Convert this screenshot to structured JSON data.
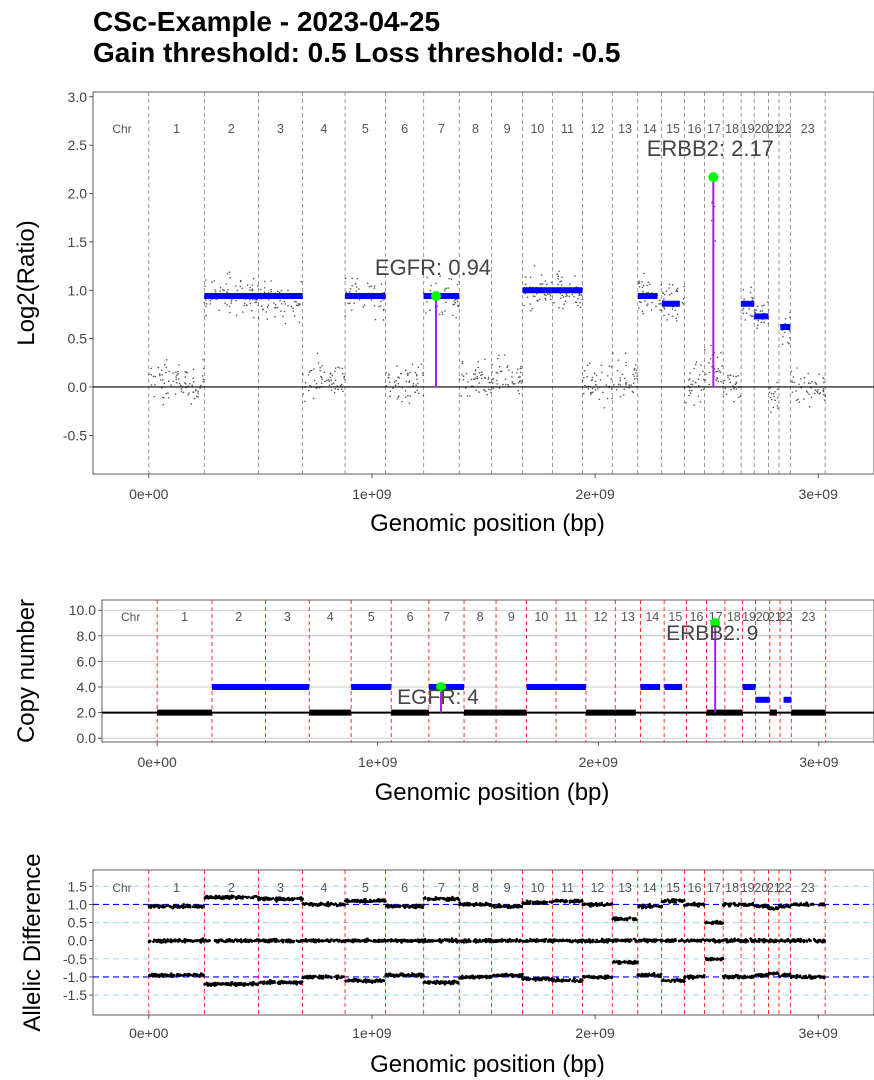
{
  "title": {
    "line1": "CSc-Example - 2023-04-25",
    "line2": "Gain threshold:  0.5  Loss threshold: -0.5"
  },
  "colors": {
    "segment": "#0000ff",
    "baseline": "#000000",
    "gene_stem": "#a020f0",
    "gene_point": "#00ff00",
    "chrom_line_panel1": "#808080",
    "chrom_line_panel23": "#ff0000",
    "threshold_allelic": "#0000ff",
    "threshold_allelic_light": "#add8e6",
    "points": "#555555"
  },
  "chr_label": "Chr",
  "chromosomes": [
    {
      "name": "1",
      "start": 0,
      "end": 248956422
    },
    {
      "name": "2",
      "start": 248956422,
      "end": 491149951
    },
    {
      "name": "3",
      "start": 491149951,
      "end": 689445510
    },
    {
      "name": "4",
      "start": 689445510,
      "end": 879660065
    },
    {
      "name": "5",
      "start": 879660065,
      "end": 1061198324
    },
    {
      "name": "6",
      "start": 1061198324,
      "end": 1232004303
    },
    {
      "name": "7",
      "start": 1232004303,
      "end": 1391350276
    },
    {
      "name": "8",
      "start": 1391350276,
      "end": 1536488912
    },
    {
      "name": "9",
      "start": 1536488912,
      "end": 1674883629
    },
    {
      "name": "10",
      "start": 1674883629,
      "end": 1808681051
    },
    {
      "name": "11",
      "start": 1808681051,
      "end": 1943767673
    },
    {
      "name": "12",
      "start": 1943767673,
      "end": 2077042982
    },
    {
      "name": "13",
      "start": 2077042982,
      "end": 2191407310
    },
    {
      "name": "14",
      "start": 2191407310,
      "end": 2298451028
    },
    {
      "name": "15",
      "start": 2298451028,
      "end": 2400442217
    },
    {
      "name": "16",
      "start": 2400442217,
      "end": 2490780562
    },
    {
      "name": "17",
      "start": 2490780562,
      "end": 2574038003
    },
    {
      "name": "18",
      "start": 2574038003,
      "end": 2654411288
    },
    {
      "name": "19",
      "start": 2654411288,
      "end": 2713028904
    },
    {
      "name": "20",
      "start": 2713028904,
      "end": 2777473071
    },
    {
      "name": "21",
      "start": 2777473071,
      "end": 2824183054
    },
    {
      "name": "22",
      "start": 2824183054,
      "end": 2875001522
    },
    {
      "name": "23",
      "start": 2875001522,
      "end": 3031042417
    }
  ],
  "chart_data": [
    {
      "type": "scatter",
      "xlabel": "Genomic position (bp)",
      "ylabel": "Log2(Ratio)",
      "xlim": [
        -250000000,
        3250000000
      ],
      "ylim": [
        -0.9,
        3.05
      ],
      "x_ticks": [
        0,
        1000000000,
        2000000000,
        3000000000
      ],
      "x_tick_labels": [
        "0e+00",
        "1e+09",
        "2e+09",
        "3e+09"
      ],
      "y_ticks": [
        -0.5,
        0.0,
        0.5,
        1.0,
        1.5,
        2.0,
        2.5,
        3.0
      ],
      "y_tick_labels": [
        "-0.5",
        "0.0",
        "0.5",
        "1.0",
        "1.5",
        "2.0",
        "2.5",
        "3.0"
      ],
      "chrom_level": [
        0.05,
        0.95,
        0.88,
        0.08,
        0.95,
        0.05,
        0.92,
        0.05,
        0.08,
        1.0,
        1.0,
        0.02,
        0.1,
        0.95,
        0.88,
        0.05,
        0.2,
        0.05,
        0.86,
        0.72,
        -0.1,
        0.62,
        0.0
      ],
      "segments": [
        {
          "x0": 248956422,
          "x1": 689445510,
          "y": 0.94
        },
        {
          "x0": 879660065,
          "x1": 1061198324,
          "y": 0.94
        },
        {
          "x0": 1232004303,
          "x1": 1391350276,
          "y": 0.94
        },
        {
          "x0": 1674883629,
          "x1": 1943767673,
          "y": 1.0
        },
        {
          "x0": 2191407310,
          "x1": 2280000000,
          "y": 0.94
        },
        {
          "x0": 2300000000,
          "x1": 2380000000,
          "y": 0.86
        },
        {
          "x0": 2654411288,
          "x1": 2713028904,
          "y": 0.86
        },
        {
          "x0": 2713028904,
          "x1": 2777473071,
          "y": 0.73
        },
        {
          "x0": 2830000000,
          "x1": 2875001522,
          "y": 0.62
        }
      ],
      "genes": [
        {
          "label": "EGFR: 0.94",
          "x": 1287000000,
          "y": 0.94
        },
        {
          "label": "ERBB2: 2.17",
          "x": 2530000000,
          "y": 2.17
        }
      ]
    },
    {
      "type": "line",
      "xlabel": "Genomic position (bp)",
      "ylabel": "Copy number",
      "xlim": [
        -250000000,
        3250000000
      ],
      "ylim": [
        -0.3,
        10.8
      ],
      "x_ticks": [
        0,
        1000000000,
        2000000000,
        3000000000
      ],
      "x_tick_labels": [
        "0e+00",
        "1e+09",
        "2e+09",
        "3e+09"
      ],
      "y_ticks": [
        0,
        2,
        4,
        6,
        8,
        10
      ],
      "y_tick_labels": [
        "0.0",
        "2.0",
        "4.0",
        "6.0",
        "8.0",
        "10.0"
      ],
      "segments": [
        {
          "x0": 0,
          "x1": 248956422,
          "y": 2
        },
        {
          "x0": 248956422,
          "x1": 689445510,
          "y": 4
        },
        {
          "x0": 689445510,
          "x1": 879660065,
          "y": 2
        },
        {
          "x0": 879660065,
          "x1": 1061198324,
          "y": 4
        },
        {
          "x0": 1061198324,
          "x1": 1232004303,
          "y": 2
        },
        {
          "x0": 1232004303,
          "x1": 1391350276,
          "y": 4
        },
        {
          "x0": 1391350276,
          "x1": 1674883629,
          "y": 2
        },
        {
          "x0": 1674883629,
          "x1": 1943767673,
          "y": 4
        },
        {
          "x0": 1943767673,
          "x1": 2077042982,
          "y": 2
        },
        {
          "x0": 2077042982,
          "x1": 2170000000,
          "y": 2
        },
        {
          "x0": 2191407310,
          "x1": 2280000000,
          "y": 4
        },
        {
          "x0": 2300000000,
          "x1": 2380000000,
          "y": 4
        },
        {
          "x0": 2490780562,
          "x1": 2654411288,
          "y": 2
        },
        {
          "x0": 2654411288,
          "x1": 2713028904,
          "y": 4
        },
        {
          "x0": 2713028904,
          "x1": 2777473071,
          "y": 3
        },
        {
          "x0": 2777473071,
          "x1": 2810000000,
          "y": 2
        },
        {
          "x0": 2840000000,
          "x1": 2875001522,
          "y": 3
        },
        {
          "x0": 2875001522,
          "x1": 3031042417,
          "y": 2
        }
      ],
      "baseline": 2,
      "genes": [
        {
          "label": "EGFR: 4",
          "x": 1287000000,
          "y": 4
        },
        {
          "label": "ERBB2: 9",
          "x": 2530000000,
          "y": 9
        }
      ]
    },
    {
      "type": "scatter",
      "xlabel": "Genomic position (bp)",
      "ylabel": "Allelic Difference",
      "xlim": [
        -250000000,
        3250000000
      ],
      "ylim": [
        -2.05,
        1.95
      ],
      "x_ticks": [
        0,
        1000000000,
        2000000000,
        3000000000
      ],
      "x_tick_labels": [
        "0e+00",
        "1e+09",
        "2e+09",
        "3e+09"
      ],
      "y_ticks": [
        -1.5,
        -1.0,
        -0.5,
        0.0,
        0.5,
        1.0,
        1.5
      ],
      "y_tick_labels": [
        "-1.5",
        "-1.0",
        "-0.5",
        "0.0",
        "0.5",
        "1.0",
        "1.5"
      ],
      "thresholds_major": [
        1.0,
        -1.0
      ],
      "thresholds_minor": [
        1.5,
        0.5,
        -0.5,
        -1.5
      ],
      "chrom_band_split": [
        0.95,
        1.2,
        1.15,
        1.0,
        1.1,
        0.95,
        1.15,
        1.0,
        0.95,
        1.05,
        1.1,
        1.0,
        0.6,
        0.95,
        1.1,
        1.0,
        0.5,
        1.0,
        1.0,
        0.95,
        0.9,
        0.95,
        1.0
      ]
    }
  ]
}
